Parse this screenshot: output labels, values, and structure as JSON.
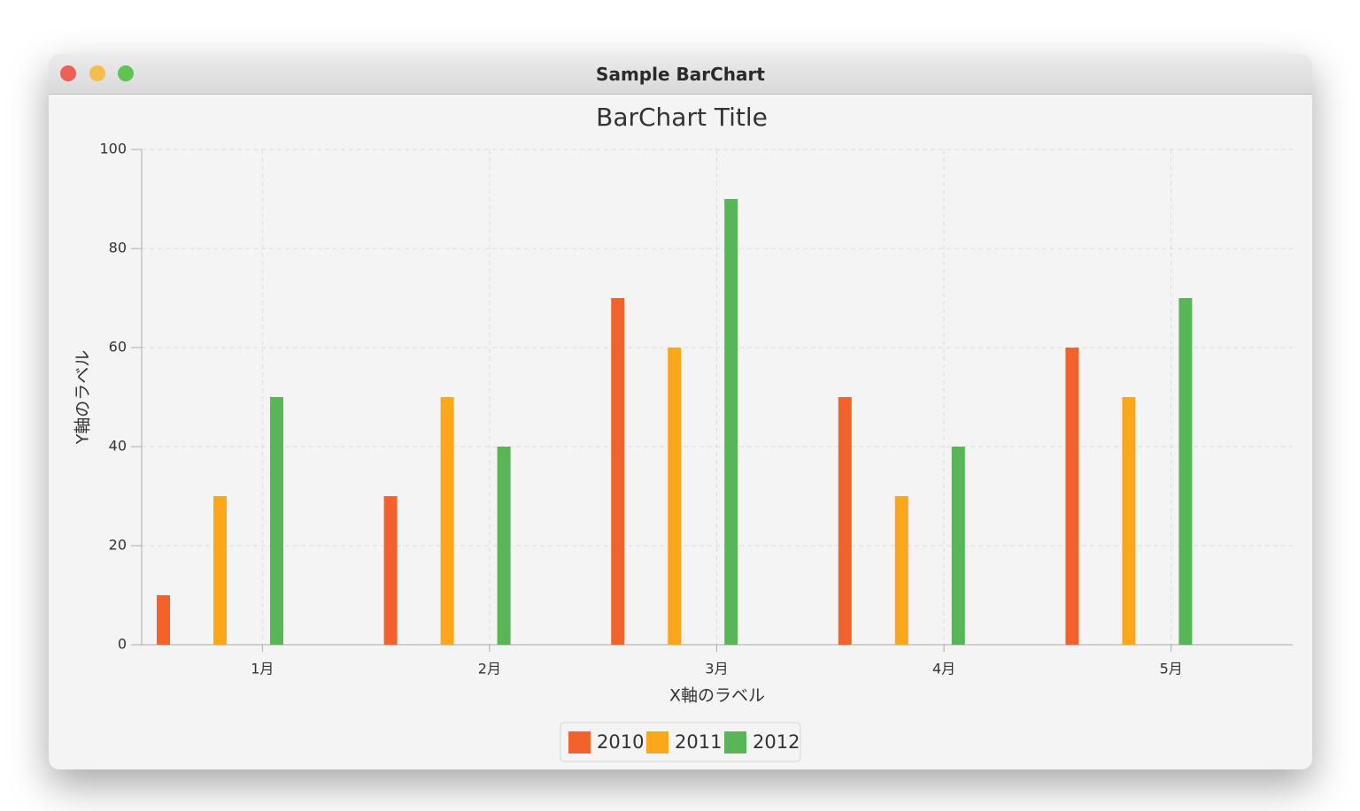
{
  "window": {
    "title": "Sample BarChart"
  },
  "chart_data": {
    "type": "bar",
    "title": "BarChart Title",
    "x_label": "X軸のラベル",
    "y_label": "Y軸のラベル",
    "categories": [
      "1月",
      "2月",
      "3月",
      "4月",
      "5月"
    ],
    "series": [
      {
        "name": "2010",
        "color": "#f3622d",
        "values": [
          10,
          30,
          70,
          50,
          60
        ]
      },
      {
        "name": "2011",
        "color": "#fba71b",
        "values": [
          30,
          50,
          60,
          30,
          50
        ]
      },
      {
        "name": "2012",
        "color": "#57b757",
        "values": [
          50,
          40,
          90,
          40,
          70
        ]
      }
    ],
    "ylim": [
      0,
      100
    ],
    "yticks": [
      0,
      20,
      40,
      60,
      80,
      100
    ],
    "grid": true,
    "legend": "bottom"
  }
}
